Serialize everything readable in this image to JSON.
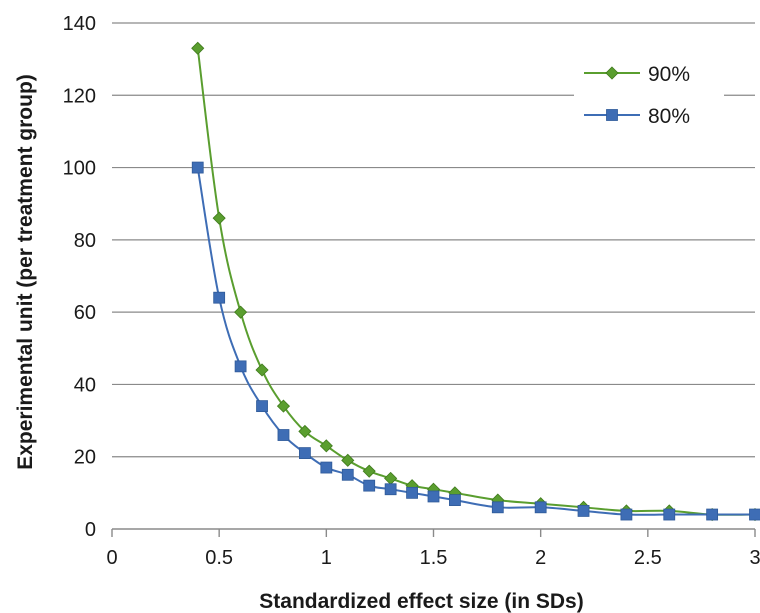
{
  "chart_data": {
    "type": "line",
    "title": "",
    "xlabel": "Standardized effect size (in SDs)",
    "ylabel": "Experimental unit (per treatment group)",
    "xlim": [
      0,
      3
    ],
    "ylim": [
      0,
      140
    ],
    "x_ticks": [
      "0",
      "0.5",
      "1",
      "1.5",
      "2",
      "2.5",
      "3"
    ],
    "y_ticks": [
      "0",
      "20",
      "40",
      "60",
      "80",
      "100",
      "120",
      "140"
    ],
    "grid": "horizontal",
    "legend_position": "top-right",
    "series": [
      {
        "name": "90%",
        "color": "#5a9e2f",
        "marker": "diamond",
        "x": [
          0.4,
          0.5,
          0.6,
          0.7,
          0.8,
          0.9,
          1.0,
          1.1,
          1.2,
          1.3,
          1.4,
          1.5,
          1.6,
          1.8,
          2.0,
          2.2,
          2.4,
          2.6,
          2.8,
          3.0
        ],
        "y": [
          133,
          86,
          60,
          44,
          34,
          27,
          23,
          19,
          16,
          14,
          12,
          11,
          10,
          8,
          7,
          6,
          5,
          5,
          4,
          4
        ]
      },
      {
        "name": "80%",
        "color": "#3e6db5",
        "marker": "square",
        "x": [
          0.4,
          0.5,
          0.6,
          0.7,
          0.8,
          0.9,
          1.0,
          1.1,
          1.2,
          1.3,
          1.4,
          1.5,
          1.6,
          1.8,
          2.0,
          2.2,
          2.4,
          2.6,
          2.8,
          3.0
        ],
        "y": [
          100,
          64,
          45,
          34,
          26,
          21,
          17,
          15,
          12,
          11,
          10,
          9,
          8,
          6,
          6,
          5,
          4,
          4,
          4,
          4
        ]
      }
    ]
  }
}
